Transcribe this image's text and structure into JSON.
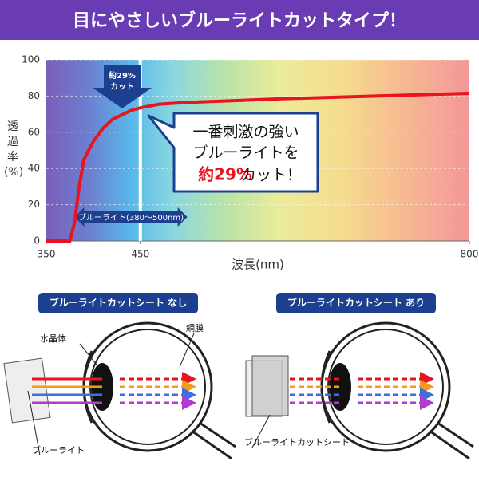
{
  "header": {
    "title": "目にやさしいブルーライトカットタイプ！"
  },
  "chart_data": {
    "type": "line",
    "xlabel": "波長(nm)",
    "ylabel": "透過率(%)",
    "x": [
      350,
      375,
      380,
      385,
      390,
      400,
      410,
      420,
      440,
      450,
      470,
      500,
      550,
      600,
      700,
      800
    ],
    "values": [
      0,
      0,
      10,
      30,
      45,
      55,
      62,
      67,
      72,
      73.5,
      75.5,
      76.5,
      77.5,
      78.5,
      80,
      81.5
    ],
    "color": "#e8141e",
    "xlim": [
      350,
      800
    ],
    "ylim": [
      0,
      100
    ],
    "xticks": [
      350,
      450,
      800
    ],
    "yticks": [
      0,
      20,
      40,
      60,
      80,
      100
    ],
    "grid": true,
    "cut_marker": [
      "約29%",
      "カット"
    ],
    "band_label": "ブルーライト(380〜500nm)",
    "callout": [
      "一番刺激の強い",
      "ブルーライトを",
      "約29%",
      "カット！"
    ]
  },
  "diagrams": [
    {
      "label": "ブルーライトカットシート なし",
      "parts": [
        "水晶体",
        "網膜",
        "ブルーライト"
      ]
    },
    {
      "label": "ブルーライトカットシート あり",
      "parts": [
        "ブルーライトカットシート"
      ]
    }
  ]
}
